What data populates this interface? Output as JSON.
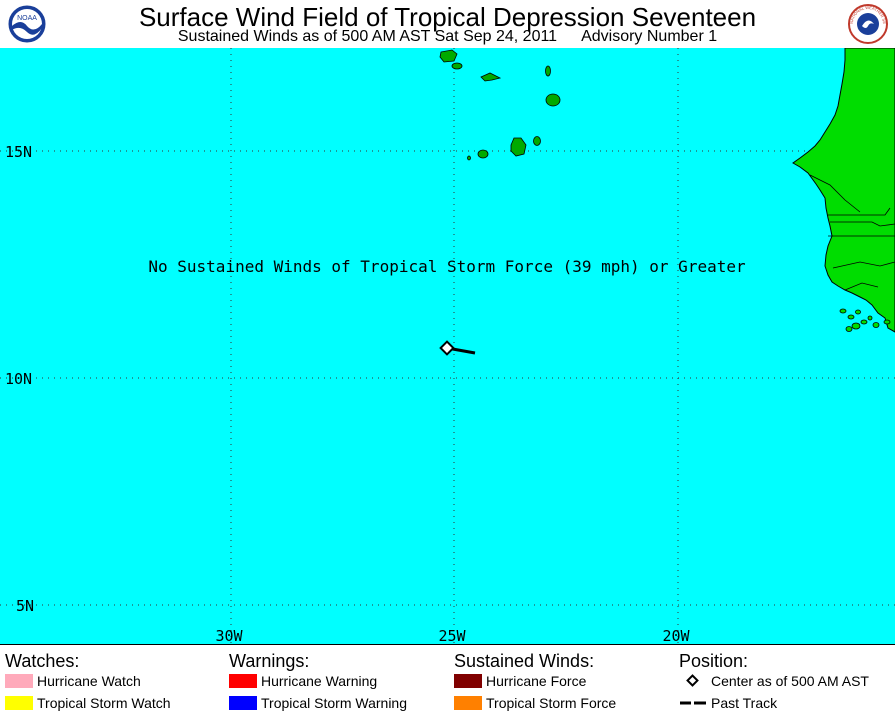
{
  "header": {
    "title": "Surface Wind Field of Tropical Depression Seventeen",
    "subtitle_left": "Sustained Winds as of 500 AM AST Sat Sep 24, 2011",
    "subtitle_right": "Advisory Number 1",
    "left_logo": "noaa-logo",
    "right_logo": "national-weather-service-logo",
    "left_logo_text": "NOAA",
    "right_logo_text": "NATIONAL WEATHER SERVICE"
  },
  "map": {
    "message": "No Sustained Winds of Tropical Storm Force (39 mph) or Greater",
    "latitude_labels": [
      "15N",
      "10N",
      "5N"
    ],
    "longitude_labels": [
      "30W",
      "25W",
      "20W"
    ],
    "colors": {
      "ocean": "#00ffff",
      "land": "#00dd00",
      "coast": "#000000"
    }
  },
  "legend": {
    "watches": {
      "heading": "Watches:",
      "items": [
        {
          "label": "Hurricane Watch",
          "color": "#ffaabb"
        },
        {
          "label": "Tropical Storm Watch",
          "color": "#ffff00"
        }
      ]
    },
    "warnings": {
      "heading": "Warnings:",
      "items": [
        {
          "label": "Hurricane Warning",
          "color": "#ff0000"
        },
        {
          "label": "Tropical Storm Warning",
          "color": "#0000ff"
        }
      ]
    },
    "winds": {
      "heading": "Sustained Winds:",
      "items": [
        {
          "label": "Hurricane Force",
          "color": "#800000"
        },
        {
          "label": "Tropical Storm Force",
          "color": "#ff8000"
        }
      ]
    },
    "position": {
      "heading": "Position:",
      "items": [
        {
          "label": "Center as of 500 AM AST",
          "icon": "diamond-icon"
        },
        {
          "label": "Past Track",
          "icon": "dashed-line-icon"
        }
      ]
    }
  }
}
